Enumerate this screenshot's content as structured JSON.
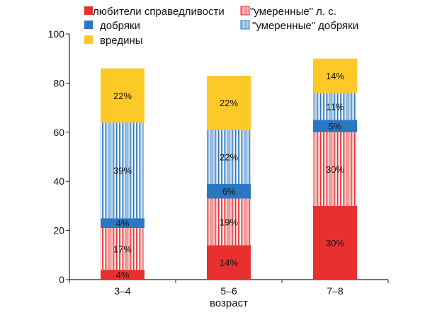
{
  "chart_data": {
    "type": "bar",
    "stacked": true,
    "xlabel": "возраст",
    "ylabel": "",
    "ylim": [
      0,
      100
    ],
    "yticks": [
      0,
      20,
      40,
      60,
      80,
      100
    ],
    "categories": [
      "3–4",
      "5–6",
      "7–8"
    ],
    "legend_position": "top",
    "series": [
      {
        "name": "любители справедливости",
        "color": "#e8302f",
        "pattern": "solid",
        "values": [
          4,
          14,
          30
        ],
        "labels": [
          "4%",
          "14%",
          "30%"
        ]
      },
      {
        "name": "\"умеренные\" л. с.",
        "color": "#e8302f",
        "pattern": "vertical-stripes",
        "values": [
          17,
          19,
          30
        ],
        "labels": [
          "17%",
          "19%",
          "30%"
        ]
      },
      {
        "name": "добряки",
        "color": "#2a78c2",
        "pattern": "solid",
        "values": [
          4,
          6,
          5
        ],
        "labels": [
          "4%",
          "6%",
          "5%"
        ]
      },
      {
        "name": "\"умеренные\" добряки",
        "color": "#2a78c2",
        "pattern": "vertical-stripes",
        "values": [
          39,
          22,
          11
        ],
        "labels": [
          "39%",
          "22%",
          "11%"
        ]
      },
      {
        "name": "вредины",
        "color": "#fcc926",
        "pattern": "solid",
        "values": [
          22,
          22,
          14
        ],
        "labels": [
          "22%",
          "22%",
          "14%"
        ]
      }
    ]
  }
}
